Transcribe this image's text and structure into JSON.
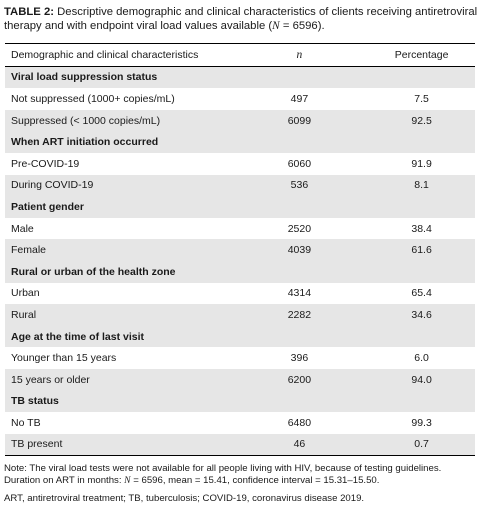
{
  "caption": {
    "label": "TABLE 2:",
    "text_before_n": " Descriptive demographic and clinical characteristics of clients receiving antiretroviral therapy and with endpoint viral load values available (",
    "n_symbol": "N",
    "text_after_n": " = 6596)."
  },
  "table": {
    "headers": {
      "characteristic": "Demographic and clinical characteristics",
      "n": "n",
      "percentage": "Percentage"
    },
    "sections": [
      {
        "title": "Viral load suppression status",
        "rows": [
          {
            "label": "Not suppressed (1000+ copies/mL)",
            "n": "497",
            "pct": "7.5"
          },
          {
            "label": "Suppressed (< 1000 copies/mL)",
            "n": "6099",
            "pct": "92.5"
          }
        ]
      },
      {
        "title": "When ART initiation occurred",
        "rows": [
          {
            "label": "Pre-COVID-19",
            "n": "6060",
            "pct": "91.9"
          },
          {
            "label": "During COVID-19",
            "n": "536",
            "pct": "8.1"
          }
        ]
      },
      {
        "title": "Patient gender",
        "rows": [
          {
            "label": "Male",
            "n": "2520",
            "pct": "38.4"
          },
          {
            "label": "Female",
            "n": "4039",
            "pct": "61.6"
          }
        ]
      },
      {
        "title": "Rural or urban of the health zone",
        "rows": [
          {
            "label": "Urban",
            "n": "4314",
            "pct": "65.4"
          },
          {
            "label": "Rural",
            "n": "2282",
            "pct": "34.6"
          }
        ]
      },
      {
        "title": "Age at the time of last visit",
        "rows": [
          {
            "label": "Younger than 15 years",
            "n": "396",
            "pct": "6.0"
          },
          {
            "label": "15 years or older",
            "n": "6200",
            "pct": "94.0"
          }
        ]
      },
      {
        "title": "TB status",
        "rows": [
          {
            "label": "No TB",
            "n": "6480",
            "pct": "99.3"
          },
          {
            "label": "TB present",
            "n": "46",
            "pct": "0.7"
          }
        ]
      }
    ]
  },
  "note": {
    "text_before_n": "Note: The viral load tests were not available for all people living with HIV, because of testing guidelines. Duration on ART in months: ",
    "n_symbol": "N",
    "text_after_n": " = 6596, mean = 15.41, confidence interval = 15.31–15.50."
  },
  "abbreviations": "ART, antiretroviral treatment; TB, tuberculosis; COVID-19, coronavirus disease 2019.",
  "colors": {
    "shade": "#e6e6e6",
    "rule": "#000000",
    "text": "#1a1a1a"
  }
}
